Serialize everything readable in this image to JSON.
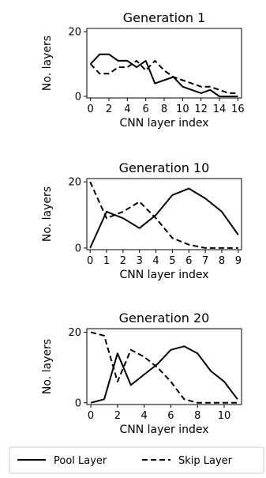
{
  "legend": {
    "entries": [
      {
        "label": "Pool Layer",
        "dash": "solid"
      },
      {
        "label": "Skip Layer",
        "dash": "dashed"
      }
    ],
    "placement": "bottom"
  },
  "chart_data": [
    {
      "type": "line",
      "title": "Generation 1",
      "xlabel": "CNN layer index",
      "ylabel": "No. layers",
      "xlim": [
        -0.4,
        16.4
      ],
      "ylim": [
        -0.5,
        21
      ],
      "xticks": [
        0,
        2,
        4,
        6,
        8,
        10,
        12,
        14,
        16
      ],
      "xtick_labels": [
        "0",
        "2",
        "4",
        "6",
        "8",
        "10",
        "12",
        "14",
        "16"
      ],
      "yticks": [
        0,
        20
      ],
      "ytick_labels": [
        "0",
        "20"
      ],
      "grid": false,
      "series": [
        {
          "name": "Pool Layer",
          "dash": "solid",
          "x": [
            0,
            1,
            2,
            3,
            4,
            5,
            6,
            7,
            8,
            9,
            10,
            11,
            12,
            13,
            14,
            15,
            16
          ],
          "y": [
            10,
            13,
            13,
            11,
            11,
            9,
            11,
            4,
            5,
            6,
            3,
            2,
            1,
            2,
            0,
            0,
            0
          ]
        },
        {
          "name": "Skip Layer",
          "dash": "dashed",
          "x": [
            0,
            1,
            2,
            3,
            4,
            5,
            6,
            7,
            8,
            9,
            10,
            11,
            12,
            13,
            14,
            15,
            16
          ],
          "y": [
            10,
            7,
            7,
            9,
            9,
            11,
            8,
            11,
            8,
            6,
            5,
            4,
            3,
            3,
            2,
            1,
            1
          ]
        }
      ]
    },
    {
      "type": "line",
      "title": "Generation 10",
      "xlabel": "CNN layer index",
      "ylabel": "No. layers",
      "xlim": [
        -0.2,
        9.2
      ],
      "ylim": [
        -0.5,
        21
      ],
      "xticks": [
        0,
        1,
        2,
        3,
        4,
        5,
        6,
        7,
        8,
        9
      ],
      "xtick_labels": [
        "0",
        "1",
        "2",
        "3",
        "4",
        "5",
        "6",
        "7",
        "8",
        "9"
      ],
      "yticks": [
        0,
        20
      ],
      "ytick_labels": [
        "0",
        "20"
      ],
      "grid": false,
      "series": [
        {
          "name": "Pool Layer",
          "dash": "solid",
          "x": [
            0,
            1,
            2,
            3,
            4,
            5,
            6,
            7,
            8,
            9
          ],
          "y": [
            0,
            11,
            9,
            6,
            10,
            16,
            18,
            15,
            11,
            4
          ]
        },
        {
          "name": "Skip Layer",
          "dash": "dashed",
          "x": [
            0,
            1,
            2,
            3,
            4,
            5,
            6,
            7,
            8,
            9
          ],
          "y": [
            20,
            9,
            11,
            14,
            9,
            3,
            1,
            0,
            0,
            0
          ]
        }
      ]
    },
    {
      "type": "line",
      "title": "Generation 20",
      "xlabel": "CNN layer index",
      "ylabel": "No. layers",
      "xlim": [
        -0.3,
        11.3
      ],
      "ylim": [
        -0.5,
        21
      ],
      "xticks": [
        0,
        2,
        4,
        6,
        8,
        10
      ],
      "xtick_labels": [
        "0",
        "2",
        "4",
        "6",
        "8",
        "10"
      ],
      "yticks": [
        0,
        20
      ],
      "ytick_labels": [
        "0",
        "20"
      ],
      "grid": false,
      "series": [
        {
          "name": "Pool Layer",
          "dash": "solid",
          "x": [
            0,
            1,
            2,
            3,
            4,
            5,
            6,
            7,
            8,
            9,
            10,
            11
          ],
          "y": [
            0,
            1,
            14,
            5,
            8,
            11,
            15,
            16,
            14,
            9,
            6,
            1
          ]
        },
        {
          "name": "Skip Layer",
          "dash": "dashed",
          "x": [
            0,
            1,
            2,
            3,
            4,
            5,
            6,
            7,
            8,
            9,
            10,
            11
          ],
          "y": [
            20,
            19,
            6,
            15,
            13,
            10,
            6,
            1,
            0,
            0,
            0,
            0
          ]
        }
      ]
    }
  ]
}
